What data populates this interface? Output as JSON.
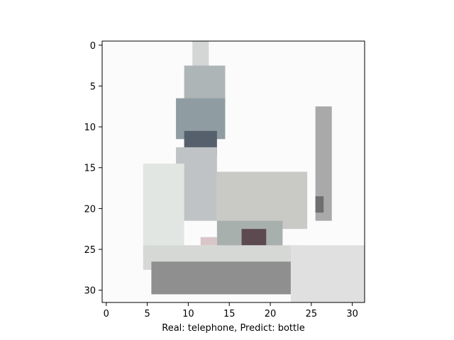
{
  "chart_data": {
    "type": "heatmap",
    "title": "",
    "xlabel": "Real: telephone, Predict: bottle",
    "ylabel": "",
    "x_ticks": [
      "0",
      "5",
      "10",
      "15",
      "20",
      "25",
      "30"
    ],
    "y_ticks": [
      "0",
      "5",
      "10",
      "15",
      "20",
      "25",
      "30"
    ],
    "x_tick_values": [
      0,
      5,
      10,
      15,
      20,
      25,
      30
    ],
    "y_tick_values": [
      0,
      5,
      10,
      15,
      20,
      25,
      30
    ],
    "xlim": [
      -0.5,
      31.5
    ],
    "ylim": [
      31.5,
      -0.5
    ],
    "grid": false,
    "image_size": [
      32,
      32
    ],
    "background_color": "#fbfbfb",
    "regions": [
      {
        "name": "antenna-tip",
        "rows": [
          0,
          3
        ],
        "cols": [
          11,
          12
        ],
        "color": "#d4d6d6"
      },
      {
        "name": "handset-upper",
        "rows": [
          3,
          7
        ],
        "cols": [
          10,
          14
        ],
        "color": "#aeb5b7"
      },
      {
        "name": "handset-mid",
        "rows": [
          7,
          11
        ],
        "cols": [
          9,
          14
        ],
        "color": "#8f9ca2"
      },
      {
        "name": "handset-dark",
        "rows": [
          11,
          13
        ],
        "cols": [
          10,
          13
        ],
        "color": "#56606c"
      },
      {
        "name": "handset-lower",
        "rows": [
          13,
          21
        ],
        "cols": [
          9,
          13
        ],
        "color": "#bfc3c6"
      },
      {
        "name": "body-left-shade",
        "rows": [
          15,
          25
        ],
        "cols": [
          5,
          9
        ],
        "color": "#e2e6e3"
      },
      {
        "name": "base-top",
        "rows": [
          16,
          22
        ],
        "cols": [
          14,
          24
        ],
        "color": "#c9c9c6"
      },
      {
        "name": "base-antenna",
        "rows": [
          8,
          21
        ],
        "cols": [
          26,
          27
        ],
        "color": "#a9a9a9"
      },
      {
        "name": "antenna-dark",
        "rows": [
          19,
          20
        ],
        "cols": [
          26,
          26
        ],
        "color": "#6e6e6e"
      },
      {
        "name": "keypad-ring",
        "rows": [
          22,
          25
        ],
        "cols": [
          14,
          21
        ],
        "color": "#a8b0ad"
      },
      {
        "name": "keypad-center",
        "rows": [
          23,
          24
        ],
        "cols": [
          17,
          19
        ],
        "color": "#5d4a50"
      },
      {
        "name": "pink-spot",
        "rows": [
          24,
          24
        ],
        "cols": [
          12,
          13
        ],
        "color": "#d8c6c8"
      },
      {
        "name": "base-front",
        "rows": [
          25,
          27
        ],
        "cols": [
          5,
          23
        ],
        "color": "#d6d8d5"
      },
      {
        "name": "base-bottom",
        "rows": [
          27,
          30
        ],
        "cols": [
          6,
          22
        ],
        "color": "#8f8f8f"
      },
      {
        "name": "shadow-right",
        "rows": [
          25,
          31
        ],
        "cols": [
          23,
          31
        ],
        "color": "#e0e0e0"
      }
    ]
  }
}
